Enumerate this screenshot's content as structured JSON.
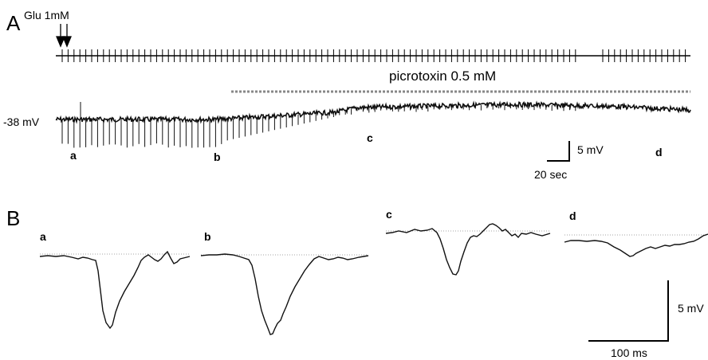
{
  "panel_a": {
    "letter": "A",
    "stimulus_label": "Glu 1mM",
    "drug_label": "picrotoxin 0.5 mM",
    "membrane_potential": "-38 mV",
    "segment_labels": [
      "a",
      "b",
      "c",
      "d"
    ],
    "scale_y_label": "5 mV",
    "scale_x_label": "20 sec"
  },
  "panel_b": {
    "letter": "B",
    "trace_labels": [
      "a",
      "b",
      "c",
      "d"
    ],
    "scale_y_label": "5 mV",
    "scale_x_label": "100 ms"
  }
}
